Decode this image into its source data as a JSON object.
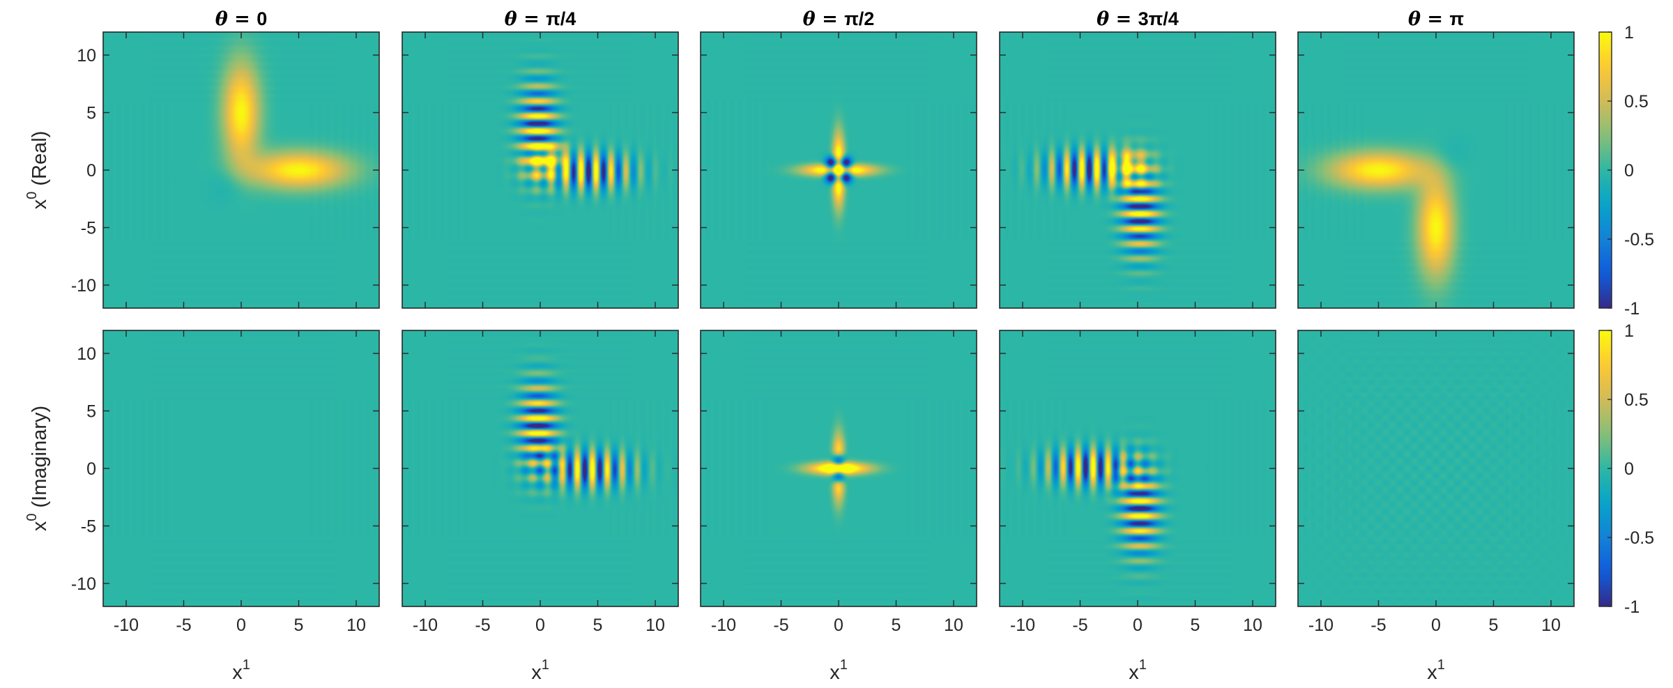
{
  "figure": {
    "column_titles": [
      {
        "prefix": "θ = ",
        "value": "0"
      },
      {
        "prefix": "θ = ",
        "value": "π/4"
      },
      {
        "prefix": "θ = ",
        "value": "π/2"
      },
      {
        "prefix": "θ = ",
        "value": "3π/4"
      },
      {
        "prefix": "θ = ",
        "value": "π"
      }
    ],
    "row_labels": [
      {
        "base": "x",
        "sup": "0",
        "suffix": " (Real)"
      },
      {
        "base": "x",
        "sup": "0",
        "suffix": " (Imaginary)"
      }
    ],
    "x_label": {
      "base": "x",
      "sup": "1"
    },
    "x_tick_labels": [
      "-10",
      "-5",
      "0",
      "5",
      "10"
    ],
    "y_tick_labels": [
      "10",
      "5",
      "0",
      "-5",
      "-10"
    ],
    "colorbar_tick_labels": [
      "1",
      "0.5",
      "0",
      "-0.5",
      "-1"
    ],
    "colormap": "parula",
    "colormap_stops": [
      "#352a87",
      "#0f5cdd",
      "#1481d6",
      "#06a4ca",
      "#2eb7a4",
      "#87bf77",
      "#d1bb59",
      "#fec832",
      "#f9fb0e"
    ],
    "background_color": "#1dbaa9"
  },
  "chart_data": {
    "type": "heatmap",
    "layout": "2 rows x 5 columns",
    "panels_rows": [
      "Real",
      "Imaginary"
    ],
    "panels_columns_theta": [
      "0",
      "π/4",
      "π/2",
      "3π/4",
      "π"
    ],
    "x_ticks": [
      -10,
      -5,
      0,
      5,
      10
    ],
    "y_ticks": [
      10,
      5,
      0,
      -5,
      -10
    ],
    "xlim": [
      -12,
      12
    ],
    "ylim": [
      -12,
      12
    ],
    "clim": [
      -1,
      1
    ],
    "colorbar_ticks": [
      1,
      0.5,
      0,
      -0.5,
      -1
    ],
    "features": {
      "real": [
        [
          {
            "kind": "blob",
            "cx": 0,
            "cy": 5,
            "sx": 1.1,
            "sy": 3.0,
            "amp": 1.0
          },
          {
            "kind": "blob",
            "cx": 5,
            "cy": 0,
            "sx": 3.0,
            "sy": 1.1,
            "amp": 1.0
          },
          {
            "kind": "blob",
            "cx": -1,
            "cy": -1,
            "sx": 1.2,
            "sy": 1.2,
            "amp": -0.12
          }
        ],
        [
          {
            "kind": "osc",
            "cx": -0.2,
            "cy": 3.6,
            "sx": 1.1,
            "sy": 2.6,
            "axis": "y",
            "k": 4.8,
            "phase": 1.0,
            "amp": 1.0
          },
          {
            "kind": "osc",
            "cx": 4.2,
            "cy": -0.1,
            "sx": 2.6,
            "sy": 1.1,
            "axis": "x",
            "k": 4.8,
            "phase": 3.14,
            "amp": 1.0
          },
          {
            "kind": "blob",
            "cx": 0.5,
            "cy": 0.8,
            "sx": 1.2,
            "sy": 1.0,
            "amp": 0.9
          }
        ],
        [
          {
            "kind": "cross",
            "cx": 0,
            "cy": 0,
            "amp": 1.0
          }
        ],
        [
          {
            "kind": "osc",
            "cx": -4.2,
            "cy": 0.1,
            "sx": 2.6,
            "sy": 1.1,
            "axis": "x",
            "k": 4.8,
            "phase": 3.14,
            "amp": 1.0
          },
          {
            "kind": "osc",
            "cx": 0.2,
            "cy": -3.6,
            "sx": 1.1,
            "sy": 2.6,
            "axis": "y",
            "k": 4.8,
            "phase": 1.0,
            "amp": 1.0
          },
          {
            "kind": "blob",
            "cx": -0.8,
            "cy": 0.3,
            "sx": 1.2,
            "sy": 1.0,
            "amp": 0.9
          }
        ],
        [
          {
            "kind": "blob",
            "cx": -5,
            "cy": 0,
            "sx": 3.0,
            "sy": 1.1,
            "amp": 1.0
          },
          {
            "kind": "blob",
            "cx": 0,
            "cy": -5,
            "sx": 1.1,
            "sy": 3.0,
            "amp": 1.0
          },
          {
            "kind": "blob",
            "cx": 1,
            "cy": 1,
            "sx": 1.2,
            "sy": 1.2,
            "amp": -0.12
          }
        ]
      ],
      "imaginary": [
        [],
        [
          {
            "kind": "osc",
            "cx": -0.2,
            "cy": 3.6,
            "sx": 1.1,
            "sy": 2.6,
            "axis": "y",
            "k": 4.8,
            "phase": 2.6,
            "amp": 1.0
          },
          {
            "kind": "osc",
            "cx": 4.2,
            "cy": -0.1,
            "sx": 2.6,
            "sy": 1.1,
            "axis": "x",
            "k": 4.8,
            "phase": 4.7,
            "amp": 1.0
          }
        ],
        [
          {
            "kind": "cross2",
            "cx": 0,
            "cy": 0,
            "amp": 1.0
          }
        ],
        [
          {
            "kind": "osc",
            "cx": -4.2,
            "cy": 0.1,
            "sx": 2.6,
            "sy": 1.1,
            "axis": "x",
            "k": 4.8,
            "phase": 4.7,
            "amp": 1.0
          },
          {
            "kind": "osc",
            "cx": 0.2,
            "cy": -3.6,
            "sx": 1.1,
            "sy": 2.6,
            "axis": "y",
            "k": 4.8,
            "phase": 2.6,
            "amp": 1.0
          }
        ],
        [
          {
            "kind": "faint",
            "cx": 0,
            "cy": 0,
            "amp": 0.05
          }
        ]
      ]
    }
  }
}
